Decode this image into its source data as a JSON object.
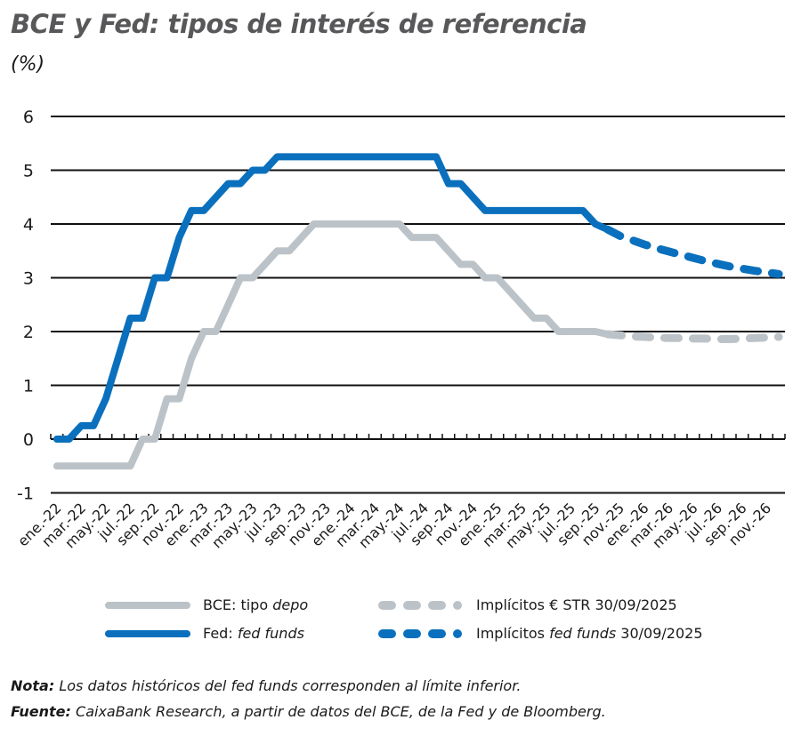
{
  "header": {
    "title": "BCE y Fed: tipos de interés de referencia",
    "unit": "(%)"
  },
  "legend": {
    "items": [
      {
        "label_main": "BCE: tipo ",
        "label_italic": "depo",
        "label_tail": "",
        "color": "#bcc3c8",
        "style": "solid"
      },
      {
        "label_main": "Implícitos € STR 30/09/2025",
        "label_italic": "",
        "label_tail": "",
        "color": "#bcc3c8",
        "style": "dashed"
      },
      {
        "label_main": "Fed: ",
        "label_italic": "fed funds",
        "label_tail": "",
        "color": "#0a70bd",
        "style": "solid"
      },
      {
        "label_main": "Implícitos ",
        "label_italic": "fed funds",
        "label_tail": " 30/09/2025",
        "color": "#0a70bd",
        "style": "dashed"
      }
    ]
  },
  "notes": {
    "nota_label": "Nota:",
    "nota_text": " Los datos históricos del fed funds corresponden al límite inferior.",
    "fuente_label": "Fuente:",
    "fuente_text": " CaixaBank Research, a partir de datos del BCE, de la Fed y de Bloomberg."
  },
  "chart_data": {
    "type": "line",
    "title": "BCE y Fed: tipos de interés de referencia",
    "ylabel": "(%)",
    "xlabel": "",
    "ylim": [
      -1,
      6
    ],
    "yticks": [
      -1,
      0,
      1,
      2,
      3,
      4,
      5,
      6
    ],
    "grid": true,
    "legend_position": "bottom",
    "categories": [
      "ene.-22",
      "mar.-22",
      "may.-22",
      "jul.-22",
      "sep.-22",
      "nov.-22",
      "ene.-23",
      "mar.-23",
      "may.-23",
      "jul.-23",
      "sep.-23",
      "nov.-23",
      "ene.-24",
      "mar.-24",
      "may.-24",
      "jul.-24",
      "sep.-24",
      "nov.-24",
      "ene.-25",
      "mar.-25",
      "may.-25",
      "jul.-25",
      "sep.-25",
      "nov.-25",
      "ene.-26",
      "mar.-26",
      "may.-26",
      "jul.-26",
      "sep.-26",
      "nov.-26"
    ],
    "x_months": [
      "2022-01",
      "2022-02",
      "2022-03",
      "2022-04",
      "2022-05",
      "2022-06",
      "2022-07",
      "2022-08",
      "2022-09",
      "2022-10",
      "2022-11",
      "2022-12",
      "2023-01",
      "2023-02",
      "2023-03",
      "2023-04",
      "2023-05",
      "2023-06",
      "2023-07",
      "2023-08",
      "2023-09",
      "2023-10",
      "2023-11",
      "2023-12",
      "2024-01",
      "2024-02",
      "2024-03",
      "2024-04",
      "2024-05",
      "2024-06",
      "2024-07",
      "2024-08",
      "2024-09",
      "2024-10",
      "2024-11",
      "2024-12",
      "2025-01",
      "2025-02",
      "2025-03",
      "2025-04",
      "2025-05",
      "2025-06",
      "2025-07",
      "2025-08",
      "2025-09",
      "2025-10",
      "2025-11",
      "2025-12",
      "2026-01",
      "2026-02",
      "2026-03",
      "2026-04",
      "2026-05",
      "2026-06",
      "2026-07",
      "2026-08",
      "2026-09",
      "2026-10",
      "2026-11",
      "2026-12"
    ],
    "series": [
      {
        "name": "BCE: tipo depo",
        "color": "#bcc3c8",
        "style": "solid",
        "values": [
          -0.5,
          -0.5,
          -0.5,
          -0.5,
          -0.5,
          -0.5,
          -0.5,
          0,
          0,
          0.75,
          0.75,
          1.5,
          2,
          2,
          2.5,
          3,
          3,
          3.25,
          3.5,
          3.5,
          3.75,
          4,
          4,
          4,
          4,
          4,
          4,
          4,
          4,
          3.75,
          3.75,
          3.75,
          3.5,
          3.25,
          3.25,
          3,
          3,
          2.75,
          2.5,
          2.25,
          2.25,
          2,
          2,
          2,
          2,
          1.95
        ]
      },
      {
        "name": "Implícitos € STR 30/09/2025",
        "color": "#bcc3c8",
        "style": "dashed",
        "start_index": 45,
        "values": [
          1.95,
          1.93,
          1.91,
          1.9,
          1.89,
          1.88,
          1.88,
          1.87,
          1.87,
          1.86,
          1.86,
          1.87,
          1.88,
          1.89,
          1.9
        ]
      },
      {
        "name": "Fed: fed funds",
        "color": "#0a70bd",
        "style": "solid",
        "values": [
          0,
          0,
          0.25,
          0.25,
          0.75,
          1.5,
          2.25,
          2.25,
          3,
          3,
          3.75,
          4.25,
          4.25,
          4.5,
          4.75,
          4.75,
          5,
          5,
          5.25,
          5.25,
          5.25,
          5.25,
          5.25,
          5.25,
          5.25,
          5.25,
          5.25,
          5.25,
          5.25,
          5.25,
          5.25,
          5.25,
          4.75,
          4.75,
          4.5,
          4.25,
          4.25,
          4.25,
          4.25,
          4.25,
          4.25,
          4.25,
          4.25,
          4.25,
          4.0,
          3.9
        ]
      },
      {
        "name": "Implícitos fed funds 30/09/2025",
        "color": "#0a70bd",
        "style": "dashed",
        "start_index": 45,
        "values": [
          3.9,
          3.78,
          3.7,
          3.62,
          3.55,
          3.49,
          3.43,
          3.37,
          3.31,
          3.26,
          3.21,
          3.17,
          3.13,
          3.1,
          3.07
        ]
      }
    ]
  }
}
